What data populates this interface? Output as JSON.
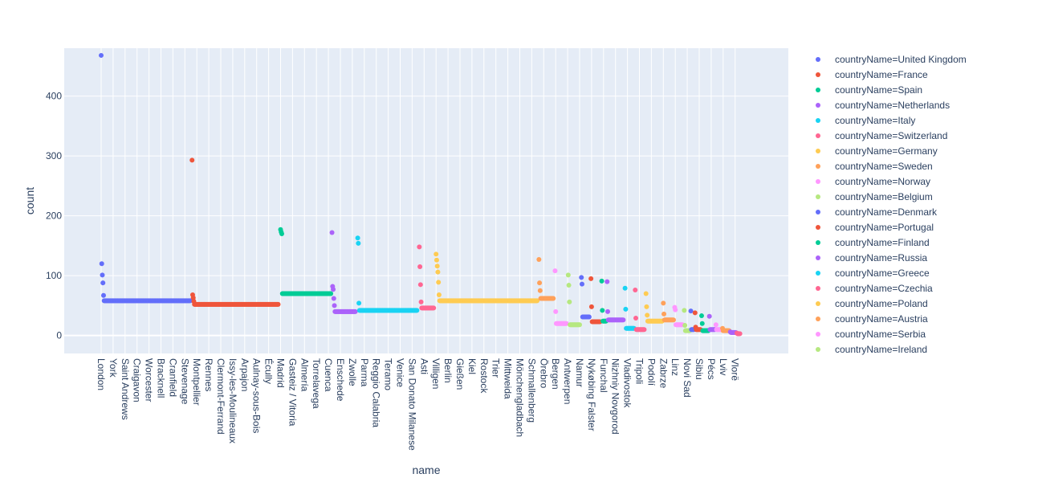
{
  "chart_data": {
    "type": "scatter",
    "xlabel": "name",
    "ylabel": "count",
    "ylim": [
      -30,
      480
    ],
    "y_ticks": [
      0,
      100,
      200,
      300,
      400
    ],
    "grid": true,
    "legend_placement": "right",
    "x_category_count": 1000,
    "x_ticks": [
      {
        "label": "London",
        "index": 0
      },
      {
        "label": "York",
        "index": 20
      },
      {
        "label": "Saint Andrews",
        "index": 40
      },
      {
        "label": "Craigavon",
        "index": 60
      },
      {
        "label": "Worcester",
        "index": 80
      },
      {
        "label": "Bracknell",
        "index": 100
      },
      {
        "label": "Cranfield",
        "index": 120
      },
      {
        "label": "Stevenage",
        "index": 140
      },
      {
        "label": "Montpellier",
        "index": 160
      },
      {
        "label": "Rennes",
        "index": 180
      },
      {
        "label": "Clermont-Ferrand",
        "index": 200
      },
      {
        "label": "Issy-les-Moulineaux",
        "index": 220
      },
      {
        "label": "Arpajon",
        "index": 240
      },
      {
        "label": "Aulnay-sous-Bois",
        "index": 260
      },
      {
        "label": "Écully",
        "index": 280
      },
      {
        "label": "Madrid",
        "index": 300
      },
      {
        "label": "Gasteiz / Vitoria",
        "index": 320
      },
      {
        "label": "Almería",
        "index": 340
      },
      {
        "label": "Torrelavega",
        "index": 360
      },
      {
        "label": "Cuenca",
        "index": 380
      },
      {
        "label": "Enschede",
        "index": 400
      },
      {
        "label": "Zwolle",
        "index": 420
      },
      {
        "label": "Parma",
        "index": 440
      },
      {
        "label": "Reggio Calabria",
        "index": 460
      },
      {
        "label": "Teramo",
        "index": 480
      },
      {
        "label": "Venice",
        "index": 500
      },
      {
        "label": "San Donato Milanese",
        "index": 520
      },
      {
        "label": "Asti",
        "index": 540
      },
      {
        "label": "Villigen",
        "index": 560
      },
      {
        "label": "Berlin",
        "index": 580
      },
      {
        "label": "Gießen",
        "index": 600
      },
      {
        "label": "Kiel",
        "index": 620
      },
      {
        "label": "Rostock",
        "index": 640
      },
      {
        "label": "Trier",
        "index": 660
      },
      {
        "label": "Mittweida",
        "index": 680
      },
      {
        "label": "Mönchengladbach",
        "index": 700
      },
      {
        "label": "Schmallenberg",
        "index": 720
      },
      {
        "label": "Örebro",
        "index": 740
      },
      {
        "label": "Bergen",
        "index": 760
      },
      {
        "label": "Antwerpen",
        "index": 780
      },
      {
        "label": "Namur",
        "index": 800
      },
      {
        "label": "Nykøbing Falster",
        "index": 820
      },
      {
        "label": "Funchal",
        "index": 840
      },
      {
        "label": "Nizhniy Novgorod",
        "index": 860
      },
      {
        "label": "Vladivostok",
        "index": 880
      },
      {
        "label": "Tripoli",
        "index": 900
      },
      {
        "label": "Podolí",
        "index": 920
      },
      {
        "label": "Zabrze",
        "index": 940
      },
      {
        "label": "Linz",
        "index": 960
      },
      {
        "label": "Novi Sad",
        "index": 980
      },
      {
        "label": "Sibiu",
        "index": 1000
      },
      {
        "label": "Pécs",
        "index": 1020
      },
      {
        "label": "Lviv",
        "index": 1040
      },
      {
        "label": "Vlorë",
        "index": 1060
      }
    ],
    "series": [
      {
        "name": "countryName=United Kingdom",
        "color": "#636efa",
        "start": 0,
        "count": 150,
        "peak": 468,
        "extra": [
          120,
          101,
          88,
          67,
          58
        ]
      },
      {
        "name": "countryName=France",
        "color": "#EF553B",
        "start": 152,
        "count": 145,
        "peak": 293,
        "extra": [
          68,
          63,
          57,
          52
        ]
      },
      {
        "name": "countryName=Spain",
        "color": "#00cc96",
        "start": 300,
        "count": 85,
        "peak": 177,
        "extra": [
          173,
          170,
          70
        ]
      },
      {
        "name": "countryName=Netherlands",
        "color": "#ab63fa",
        "start": 386,
        "count": 40,
        "peak": 172,
        "extra": [
          82,
          77,
          62,
          50,
          40
        ]
      },
      {
        "name": "countryName=Italy",
        "color": "#19d3f3",
        "start": 429,
        "count": 100,
        "peak": 163,
        "extra": [
          154,
          54,
          42
        ]
      },
      {
        "name": "countryName=Switzerland",
        "color": "#FF6692",
        "start": 532,
        "count": 25,
        "peak": 148,
        "extra": [
          115,
          85,
          56,
          46
        ]
      },
      {
        "name": "countryName=Germany",
        "color": "#FECB52",
        "start": 560,
        "count": 170,
        "peak": 136,
        "extra": [
          126,
          116,
          106,
          89,
          68,
          58
        ]
      },
      {
        "name": "countryName=Sweden",
        "color": "#FFA15A",
        "start": 732,
        "count": 25,
        "peak": 127,
        "extra": [
          88,
          75,
          62
        ]
      },
      {
        "name": "countryName=Norway",
        "color": "#FF97FF",
        "start": 759,
        "count": 20,
        "peak": 108,
        "extra": [
          40,
          20
        ]
      },
      {
        "name": "countryName=Belgium",
        "color": "#B6E880",
        "start": 781,
        "count": 20,
        "peak": 101,
        "extra": [
          84,
          56,
          18
        ]
      },
      {
        "name": "countryName=Denmark",
        "color": "#636efa",
        "start": 803,
        "count": 14,
        "peak": 97,
        "extra": [
          86,
          31
        ]
      },
      {
        "name": "countryName=Portugal",
        "color": "#EF553B",
        "start": 819,
        "count": 16,
        "peak": 95,
        "extra": [
          48,
          23
        ]
      },
      {
        "name": "countryName=Finland",
        "color": "#00cc96",
        "start": 837,
        "count": 8,
        "peak": 91,
        "extra": [
          42,
          24
        ]
      },
      {
        "name": "countryName=Russia",
        "color": "#ab63fa",
        "start": 846,
        "count": 28,
        "peak": 90,
        "extra": [
          40,
          26
        ]
      },
      {
        "name": "countryName=Greece",
        "color": "#19d3f3",
        "start": 876,
        "count": 16,
        "peak": 79,
        "extra": [
          44,
          12
        ]
      },
      {
        "name": "countryName=Czechia",
        "color": "#FF6692",
        "start": 893,
        "count": 16,
        "peak": 76,
        "extra": [
          29,
          10
        ]
      },
      {
        "name": "countryName=Poland",
        "color": "#FECB52",
        "start": 911,
        "count": 28,
        "peak": 70,
        "extra": [
          48,
          34,
          24
        ]
      },
      {
        "name": "countryName=Austria",
        "color": "#FFA15A",
        "start": 940,
        "count": 18,
        "peak": 54,
        "extra": [
          36,
          26
        ]
      },
      {
        "name": "countryName=Serbia",
        "color": "#FF97FF",
        "start": 959,
        "count": 14,
        "peak": 47,
        "extra": [
          43,
          18
        ]
      },
      {
        "name": "countryName=Ireland",
        "color": "#B6E880",
        "start": 975,
        "count": 10,
        "peak": 42,
        "extra": [
          17,
          8
        ]
      },
      {
        "name": "",
        "color": "#636efa",
        "start": 986,
        "count": 6,
        "peak": 41,
        "extra": [
          10
        ]
      },
      {
        "name": "",
        "color": "#EF553B",
        "start": 993,
        "count": 10,
        "peak": 38,
        "extra": [
          14,
          10
        ]
      },
      {
        "name": "",
        "color": "#00cc96",
        "start": 1004,
        "count": 12,
        "peak": 33,
        "extra": [
          20,
          8
        ]
      },
      {
        "name": "",
        "color": "#ab63fa",
        "start": 1017,
        "count": 10,
        "peak": 32,
        "extra": [
          10
        ]
      },
      {
        "name": "",
        "color": "#FF97FF",
        "start": 1028,
        "count": 10,
        "peak": 18,
        "extra": [
          10
        ]
      },
      {
        "name": "",
        "color": "#FFA15A",
        "start": 1039,
        "count": 12,
        "peak": 12,
        "extra": [
          8
        ]
      },
      {
        "name": "",
        "color": "#ab63fa",
        "start": 1052,
        "count": 10,
        "peak": 6,
        "extra": [
          5
        ]
      },
      {
        "name": "",
        "color": "#FF6692",
        "start": 1063,
        "count": 6,
        "peak": 4,
        "extra": [
          3
        ]
      }
    ]
  }
}
